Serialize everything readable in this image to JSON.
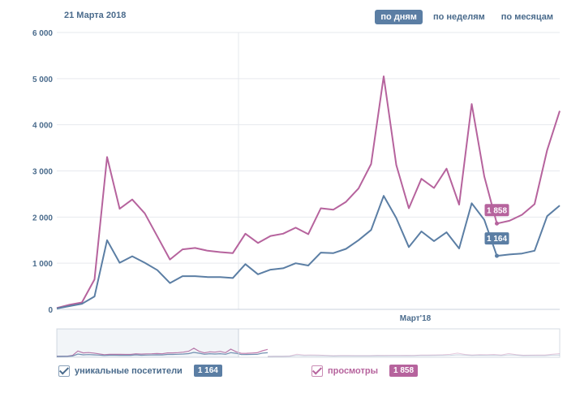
{
  "header": {
    "date": "21 Марта 2018"
  },
  "tabs": [
    {
      "label": "по дням",
      "active": true
    },
    {
      "label": "по неделям",
      "active": false
    },
    {
      "label": "по месяцам",
      "active": false
    }
  ],
  "chart_data": {
    "type": "line",
    "y_ticks": [
      "6 000",
      "5 000",
      "4 000",
      "3 000",
      "2 000",
      "1 000",
      "0"
    ],
    "ylim": [
      0,
      6000
    ],
    "x_label": "Март'18",
    "series": [
      {
        "name": "просмотры",
        "color": "#b6639d",
        "values": [
          30,
          100,
          150,
          650,
          3300,
          2180,
          2380,
          2080,
          1580,
          1080,
          1300,
          1330,
          1270,
          1240,
          1220,
          1640,
          1440,
          1590,
          1640,
          1770,
          1630,
          2190,
          2160,
          2330,
          2620,
          3150,
          5050,
          3130,
          2190,
          2830,
          2630,
          3050,
          2270,
          4450,
          2880,
          1860,
          1920,
          2050,
          2280,
          3450,
          4300
        ],
        "highlight_index": 35,
        "highlight_label": "1 858"
      },
      {
        "name": "уникальные посетители",
        "color": "#5b7ea4",
        "values": [
          20,
          70,
          120,
          280,
          1500,
          1010,
          1150,
          1010,
          850,
          570,
          720,
          720,
          700,
          700,
          680,
          980,
          760,
          860,
          890,
          1000,
          950,
          1230,
          1220,
          1310,
          1500,
          1720,
          2460,
          1980,
          1350,
          1690,
          1480,
          1670,
          1320,
          2300,
          1940,
          1160,
          1190,
          1210,
          1270,
          2020,
          2250
        ],
        "highlight_index": 35,
        "highlight_label": "1 164"
      }
    ],
    "grid": true
  },
  "legend": [
    {
      "label": "уникальные посетители",
      "value": "1 164",
      "color": "#5b7ea4",
      "checked": true
    },
    {
      "label": "просмотры",
      "value": "1 858",
      "color": "#b6639d",
      "checked": true
    }
  ]
}
